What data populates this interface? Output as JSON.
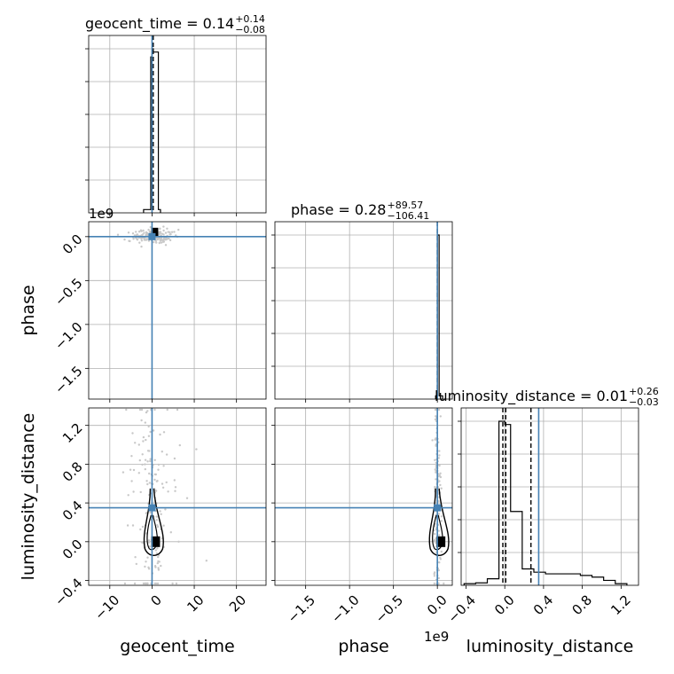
{
  "chart_data": {
    "type": "corner",
    "parameters": [
      "geocent_time",
      "phase",
      "luminosity_distance"
    ],
    "truths": {
      "geocent_time": 0.0,
      "phase": 0.0,
      "luminosity_distance": 0.35
    },
    "titles": [
      {
        "param": "geocent_time",
        "prefix": "geocent_time = 0.14",
        "plus": "+0.14",
        "minus": "−0.08"
      },
      {
        "param": "phase",
        "prefix": "phase = 0.28",
        "plus": "+89.57",
        "minus": "−106.41"
      },
      {
        "param": "luminosity_distance",
        "prefix": "luminosity_distance = 0.01",
        "plus": "+0.26",
        "minus": "−0.03"
      }
    ],
    "axes": {
      "geocent_time": {
        "range": [
          -15,
          27
        ],
        "ticks": [
          -10,
          0,
          10,
          20
        ],
        "tick_labels": [
          "−10",
          "0",
          "10",
          "20"
        ]
      },
      "phase": {
        "range": [
          -1.85,
          0.17
        ],
        "ticks": [
          -1.5,
          -1.0,
          -0.5,
          0.0
        ],
        "tick_labels": [
          "−1.5",
          "−1.0",
          "−0.5",
          "0.0"
        ],
        "offset_text": "1e9"
      },
      "luminosity_distance": {
        "range": [
          -0.45,
          1.38
        ],
        "ticks": [
          -0.4,
          0.0,
          0.4,
          0.8,
          1.2
        ],
        "tick_labels": [
          "−0.4",
          "0.0",
          "0.4",
          "0.8",
          "1.2"
        ]
      }
    },
    "histograms": {
      "geocent_time": {
        "edges": [
          -2,
          -0.3,
          0,
          0.3,
          1.5,
          2
        ],
        "counts": [
          0.02,
          0.95,
          1.0,
          0.98,
          0.02
        ]
      },
      "phase": {
        "edges": [
          -0.02,
          0.0,
          0.02,
          0.06
        ],
        "counts": [
          0.02,
          1.0,
          0.02
        ]
      },
      "luminosity_distance": {
        "edges": [
          -0.42,
          -0.3,
          -0.18,
          -0.06,
          0.0,
          0.06,
          0.18,
          0.3,
          0.42,
          0.54,
          0.66,
          0.78,
          0.9,
          1.02,
          1.14,
          1.26
        ],
        "counts": [
          0.01,
          0.015,
          0.04,
          1.0,
          0.98,
          0.45,
          0.1,
          0.08,
          0.07,
          0.07,
          0.07,
          0.06,
          0.05,
          0.03,
          0.01
        ]
      }
    },
    "quantiles": {
      "geocent_time": [
        0.06,
        0.14,
        0.28
      ],
      "phase": [
        -0.000106,
        2.8e-07,
        8.99e-05
      ],
      "luminosity_distance": [
        -0.02,
        0.01,
        0.27
      ]
    },
    "grid": true,
    "y_tick_labels_shown": [
      "phase",
      "luminosity_distance"
    ]
  }
}
